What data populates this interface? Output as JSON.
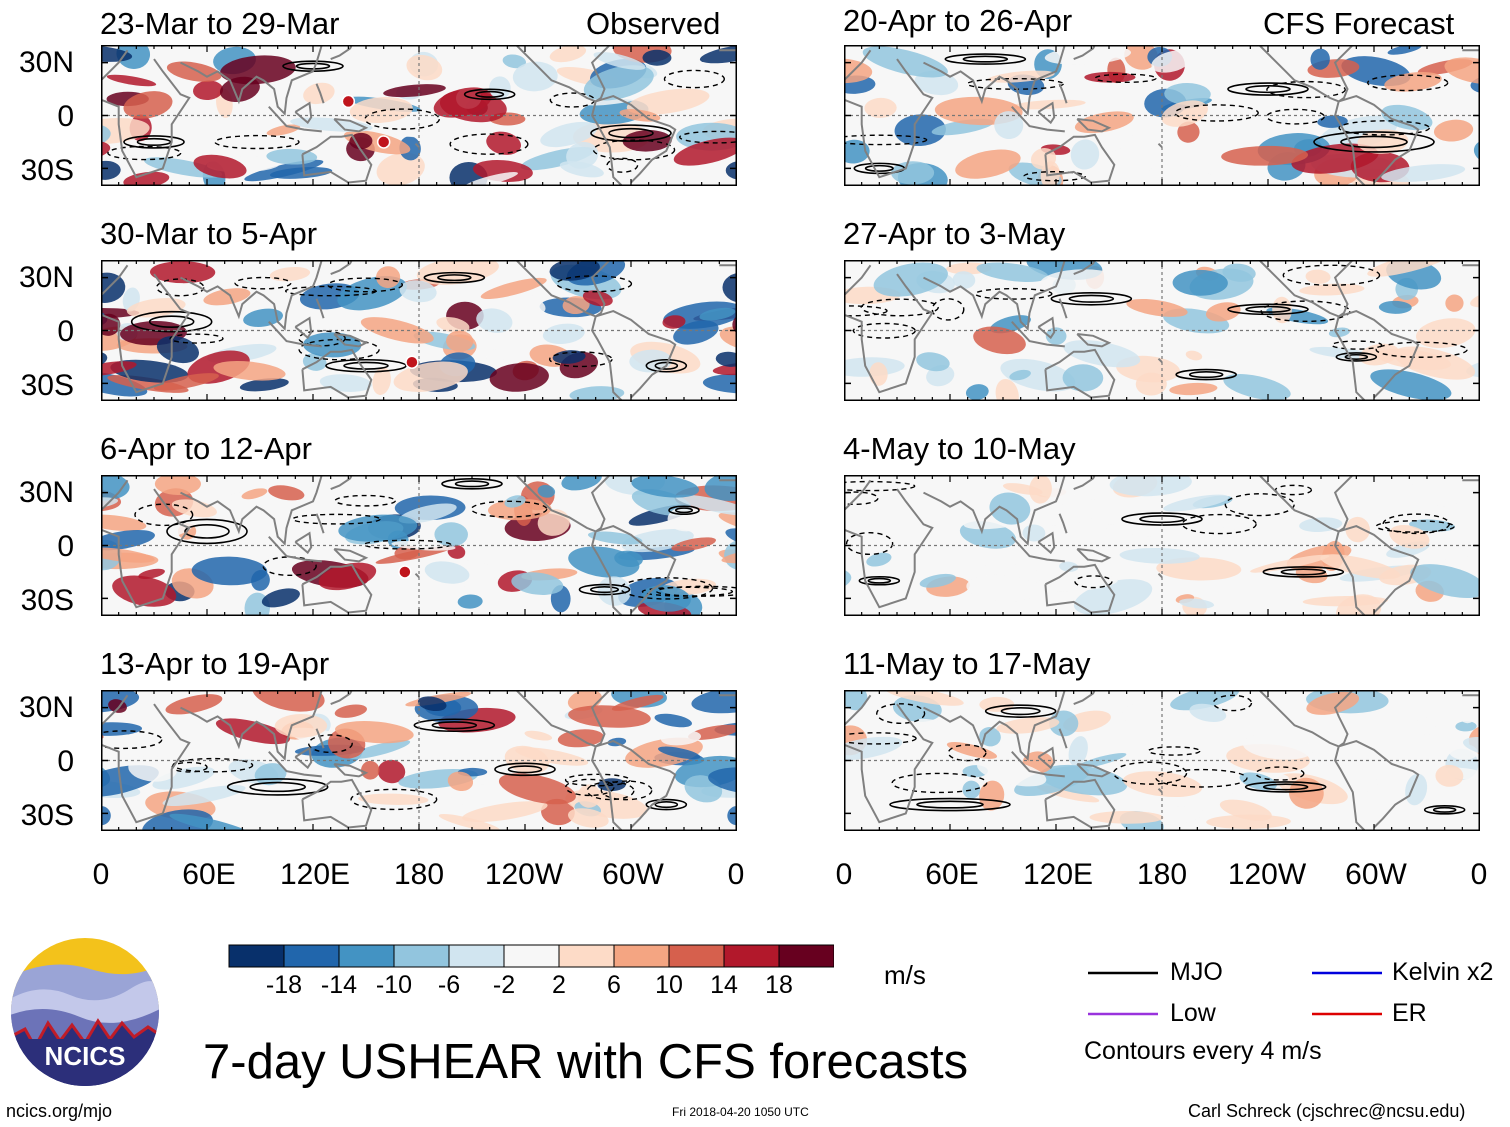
{
  "chart_data": {
    "type": "heatmap",
    "title": "7-day USHEAR with CFS forecasts",
    "observed_label": "Observed",
    "forecast_label": "CFS Forecast",
    "lat_ticks": [
      "30N",
      "0",
      "30S"
    ],
    "lon_ticks": [
      "0",
      "60E",
      "120E",
      "180",
      "120W",
      "60W",
      "0"
    ],
    "lat_range": [
      -40,
      40
    ],
    "lon_range": [
      0,
      360
    ],
    "panels": [
      {
        "label": "23-Mar to 29-Mar",
        "kind": "observed"
      },
      {
        "label": "30-Mar to 5-Apr",
        "kind": "observed"
      },
      {
        "label": "6-Apr to 12-Apr",
        "kind": "observed"
      },
      {
        "label": "13-Apr to 19-Apr",
        "kind": "observed"
      },
      {
        "label": "20-Apr to 26-Apr",
        "kind": "forecast"
      },
      {
        "label": "27-Apr to 3-May",
        "kind": "forecast"
      },
      {
        "label": "4-May to 10-May",
        "kind": "forecast"
      },
      {
        "label": "11-May to 17-May",
        "kind": "forecast"
      }
    ],
    "colorbar": {
      "unit": "m/s",
      "levels": [
        "-18",
        "-14",
        "-10",
        "-6",
        "-2",
        "2",
        "6",
        "10",
        "14",
        "18"
      ],
      "colors": [
        "#08306b",
        "#2166ac",
        "#4393c3",
        "#92c5de",
        "#d1e5f0",
        "#f7f7f7",
        "#fddbc7",
        "#f4a582",
        "#d6604d",
        "#b2182b",
        "#67001f"
      ]
    },
    "legend": [
      {
        "label": "MJO",
        "color": "#000000"
      },
      {
        "label": "Kelvin x2",
        "color": "#0000dd"
      },
      {
        "label": "Low",
        "color": "#9933dd"
      },
      {
        "label": "ER",
        "color": "#dd0000"
      }
    ],
    "contour_note": "Contours every 4 m/s"
  },
  "branding": {
    "logo_text": "NCICS",
    "site": "ncics.org/mjo",
    "timestamp": "Fri 2018-04-20 1050 UTC",
    "author": "Carl Schreck (cjschrec@ncsu.edu)"
  }
}
